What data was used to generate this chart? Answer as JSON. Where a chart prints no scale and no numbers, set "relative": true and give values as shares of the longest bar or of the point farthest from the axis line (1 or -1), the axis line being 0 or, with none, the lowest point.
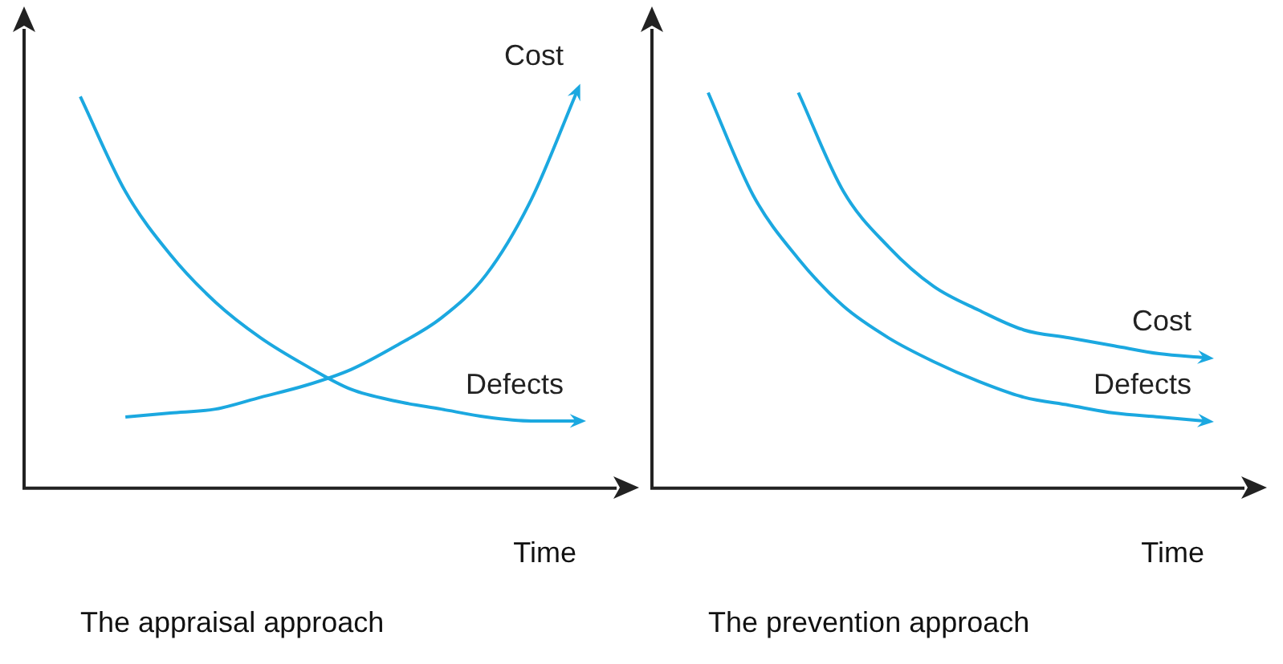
{
  "chart_data": [
    {
      "type": "line",
      "title": "The appraisal approach",
      "xlabel": "Time",
      "relative": true,
      "legend": false,
      "grid": false,
      "marker": "none",
      "line_style": "solid",
      "categories": [
        null,
        null,
        null,
        null,
        null,
        null,
        null,
        null,
        null,
        null,
        null,
        null
      ],
      "series": [
        {
          "name": "Cost",
          "color": "#1ba8e0",
          "values": [
            null,
            0.18,
            0.19,
            0.2,
            0.23,
            0.26,
            0.3,
            0.36,
            0.43,
            0.54,
            0.73,
            1
          ]
        },
        {
          "name": "Defects",
          "color": "#1ba8e0",
          "values": [
            0.99,
            0.75,
            0.59,
            0.47,
            0.38,
            0.31,
            0.25,
            0.22,
            0.2,
            0.18,
            0.17,
            0.17
          ]
        }
      ]
    },
    {
      "type": "line",
      "title": "The prevention approach",
      "xlabel": "Time",
      "relative": true,
      "legend": false,
      "grid": false,
      "marker": "none",
      "line_style": "solid",
      "categories": [
        null,
        null,
        null,
        null,
        null,
        null,
        null,
        null,
        null,
        null,
        null,
        null
      ],
      "series": [
        {
          "name": "Cost",
          "color": "#1ba8e0",
          "values": [
            null,
            null,
            1,
            0.75,
            0.61,
            0.51,
            0.45,
            0.4,
            0.38,
            0.36,
            0.34,
            0.33
          ]
        },
        {
          "name": "Defects",
          "color": "#1ba8e0",
          "values": [
            1,
            0.74,
            0.58,
            0.46,
            0.38,
            0.32,
            0.27,
            0.23,
            0.21,
            0.19,
            0.18,
            0.17
          ]
        }
      ]
    }
  ]
}
